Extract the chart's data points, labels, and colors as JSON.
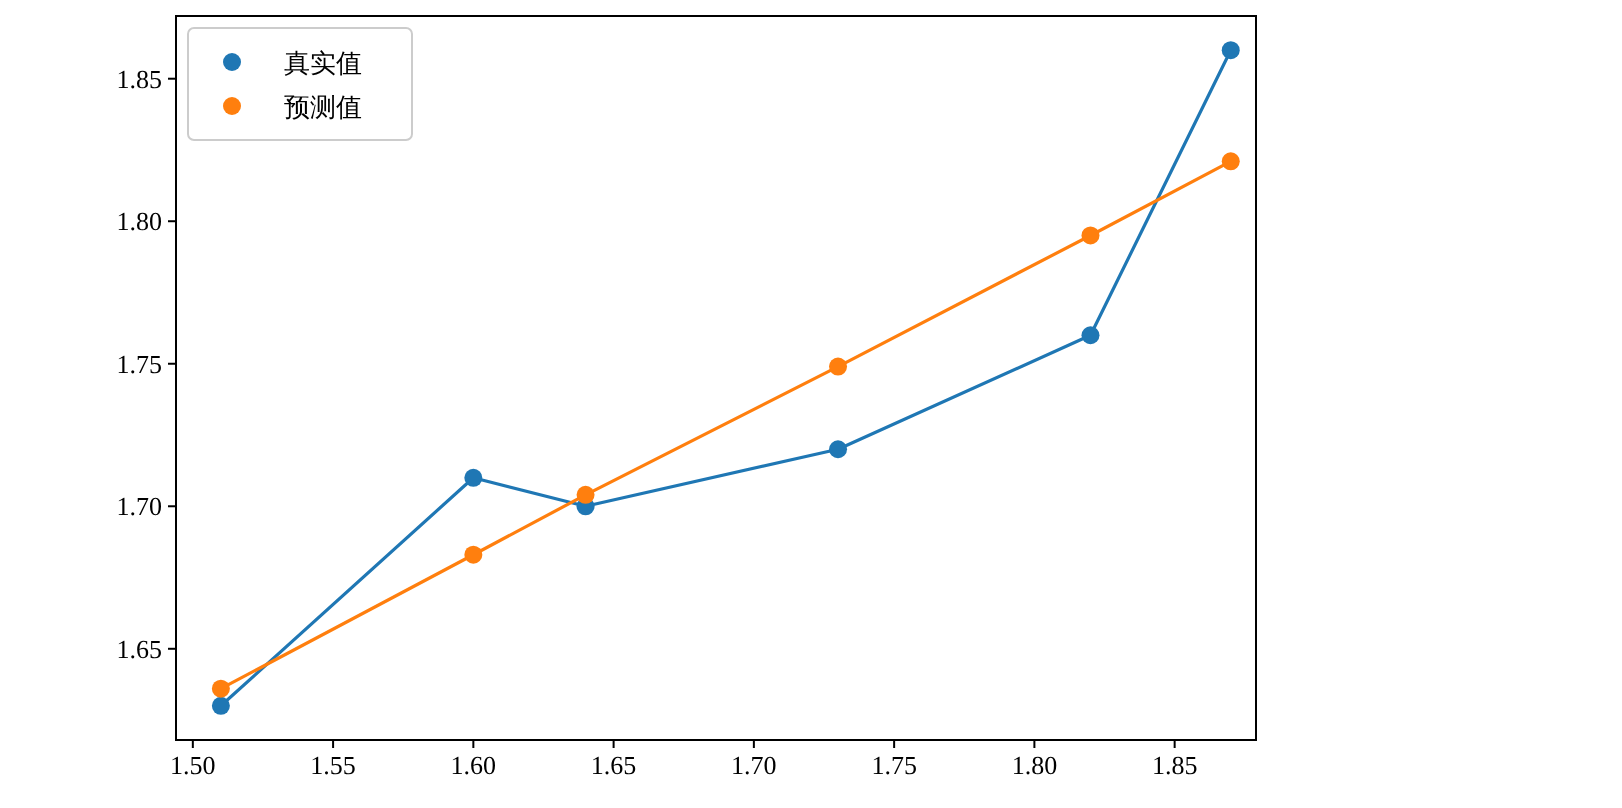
{
  "chart_data": {
    "type": "line",
    "marker": "circle",
    "legend": "top left",
    "grid": false,
    "x": [
      1.51,
      1.6,
      1.64,
      1.73,
      1.82,
      1.87
    ],
    "series": [
      {
        "name": "真实值",
        "color": "#1f77b4",
        "values": [
          1.63,
          1.71,
          1.7,
          1.72,
          1.76,
          1.86
        ]
      },
      {
        "name": "预测值",
        "color": "#ff7f0e",
        "values": [
          1.636,
          1.683,
          1.704,
          1.749,
          1.795,
          1.821
        ]
      }
    ],
    "xlim": [
      1.494,
      1.879
    ],
    "ylim": [
      1.618,
      1.872
    ],
    "xticks": [
      {
        "value": 1.5,
        "label": "1.50"
      },
      {
        "value": 1.55,
        "label": "1.55"
      },
      {
        "value": 1.6,
        "label": "1.60"
      },
      {
        "value": 1.65,
        "label": "1.65"
      },
      {
        "value": 1.7,
        "label": "1.70"
      },
      {
        "value": 1.75,
        "label": "1.75"
      },
      {
        "value": 1.8,
        "label": "1.80"
      },
      {
        "value": 1.85,
        "label": "1.85"
      }
    ],
    "yticks": [
      {
        "value": 1.65,
        "label": "1.65"
      },
      {
        "value": 1.7,
        "label": "1.70"
      },
      {
        "value": 1.75,
        "label": "1.75"
      },
      {
        "value": 1.8,
        "label": "1.80"
      },
      {
        "value": 1.85,
        "label": "1.85"
      }
    ]
  }
}
